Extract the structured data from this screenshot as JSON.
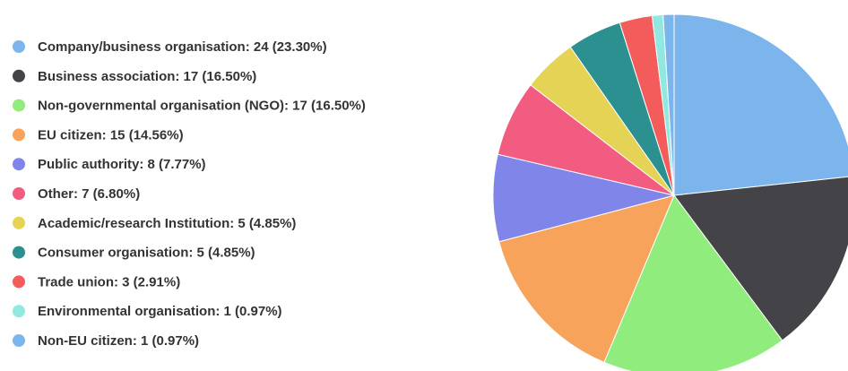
{
  "chart_data": {
    "type": "pie",
    "categories": [
      "Company/business organisation: 24 (23.30%)",
      "Business association: 17 (16.50%)",
      "Non-governmental organisation (NGO): 17 (16.50%)",
      "EU citizen: 15 (14.56%)",
      "Public authority: 8 (7.77%)",
      "Other: 7 (6.80%)",
      "Academic/research Institution: 5 (4.85%)",
      "Consumer organisation: 5 (4.85%)",
      "Trade union: 3 (2.91%)",
      "Environmental organisation: 1 (0.97%)",
      "Non-EU citizen: 1 (0.97%)"
    ],
    "values": [
      24,
      17,
      17,
      15,
      8,
      7,
      5,
      5,
      3,
      1,
      1
    ],
    "colors": [
      "#7cb5ec",
      "#434348",
      "#90ed7d",
      "#f7a35c",
      "#8085e9",
      "#f15c80",
      "#e4d354",
      "#2b908f",
      "#f45b5b",
      "#91e8e1",
      "#7cb5ec"
    ]
  }
}
